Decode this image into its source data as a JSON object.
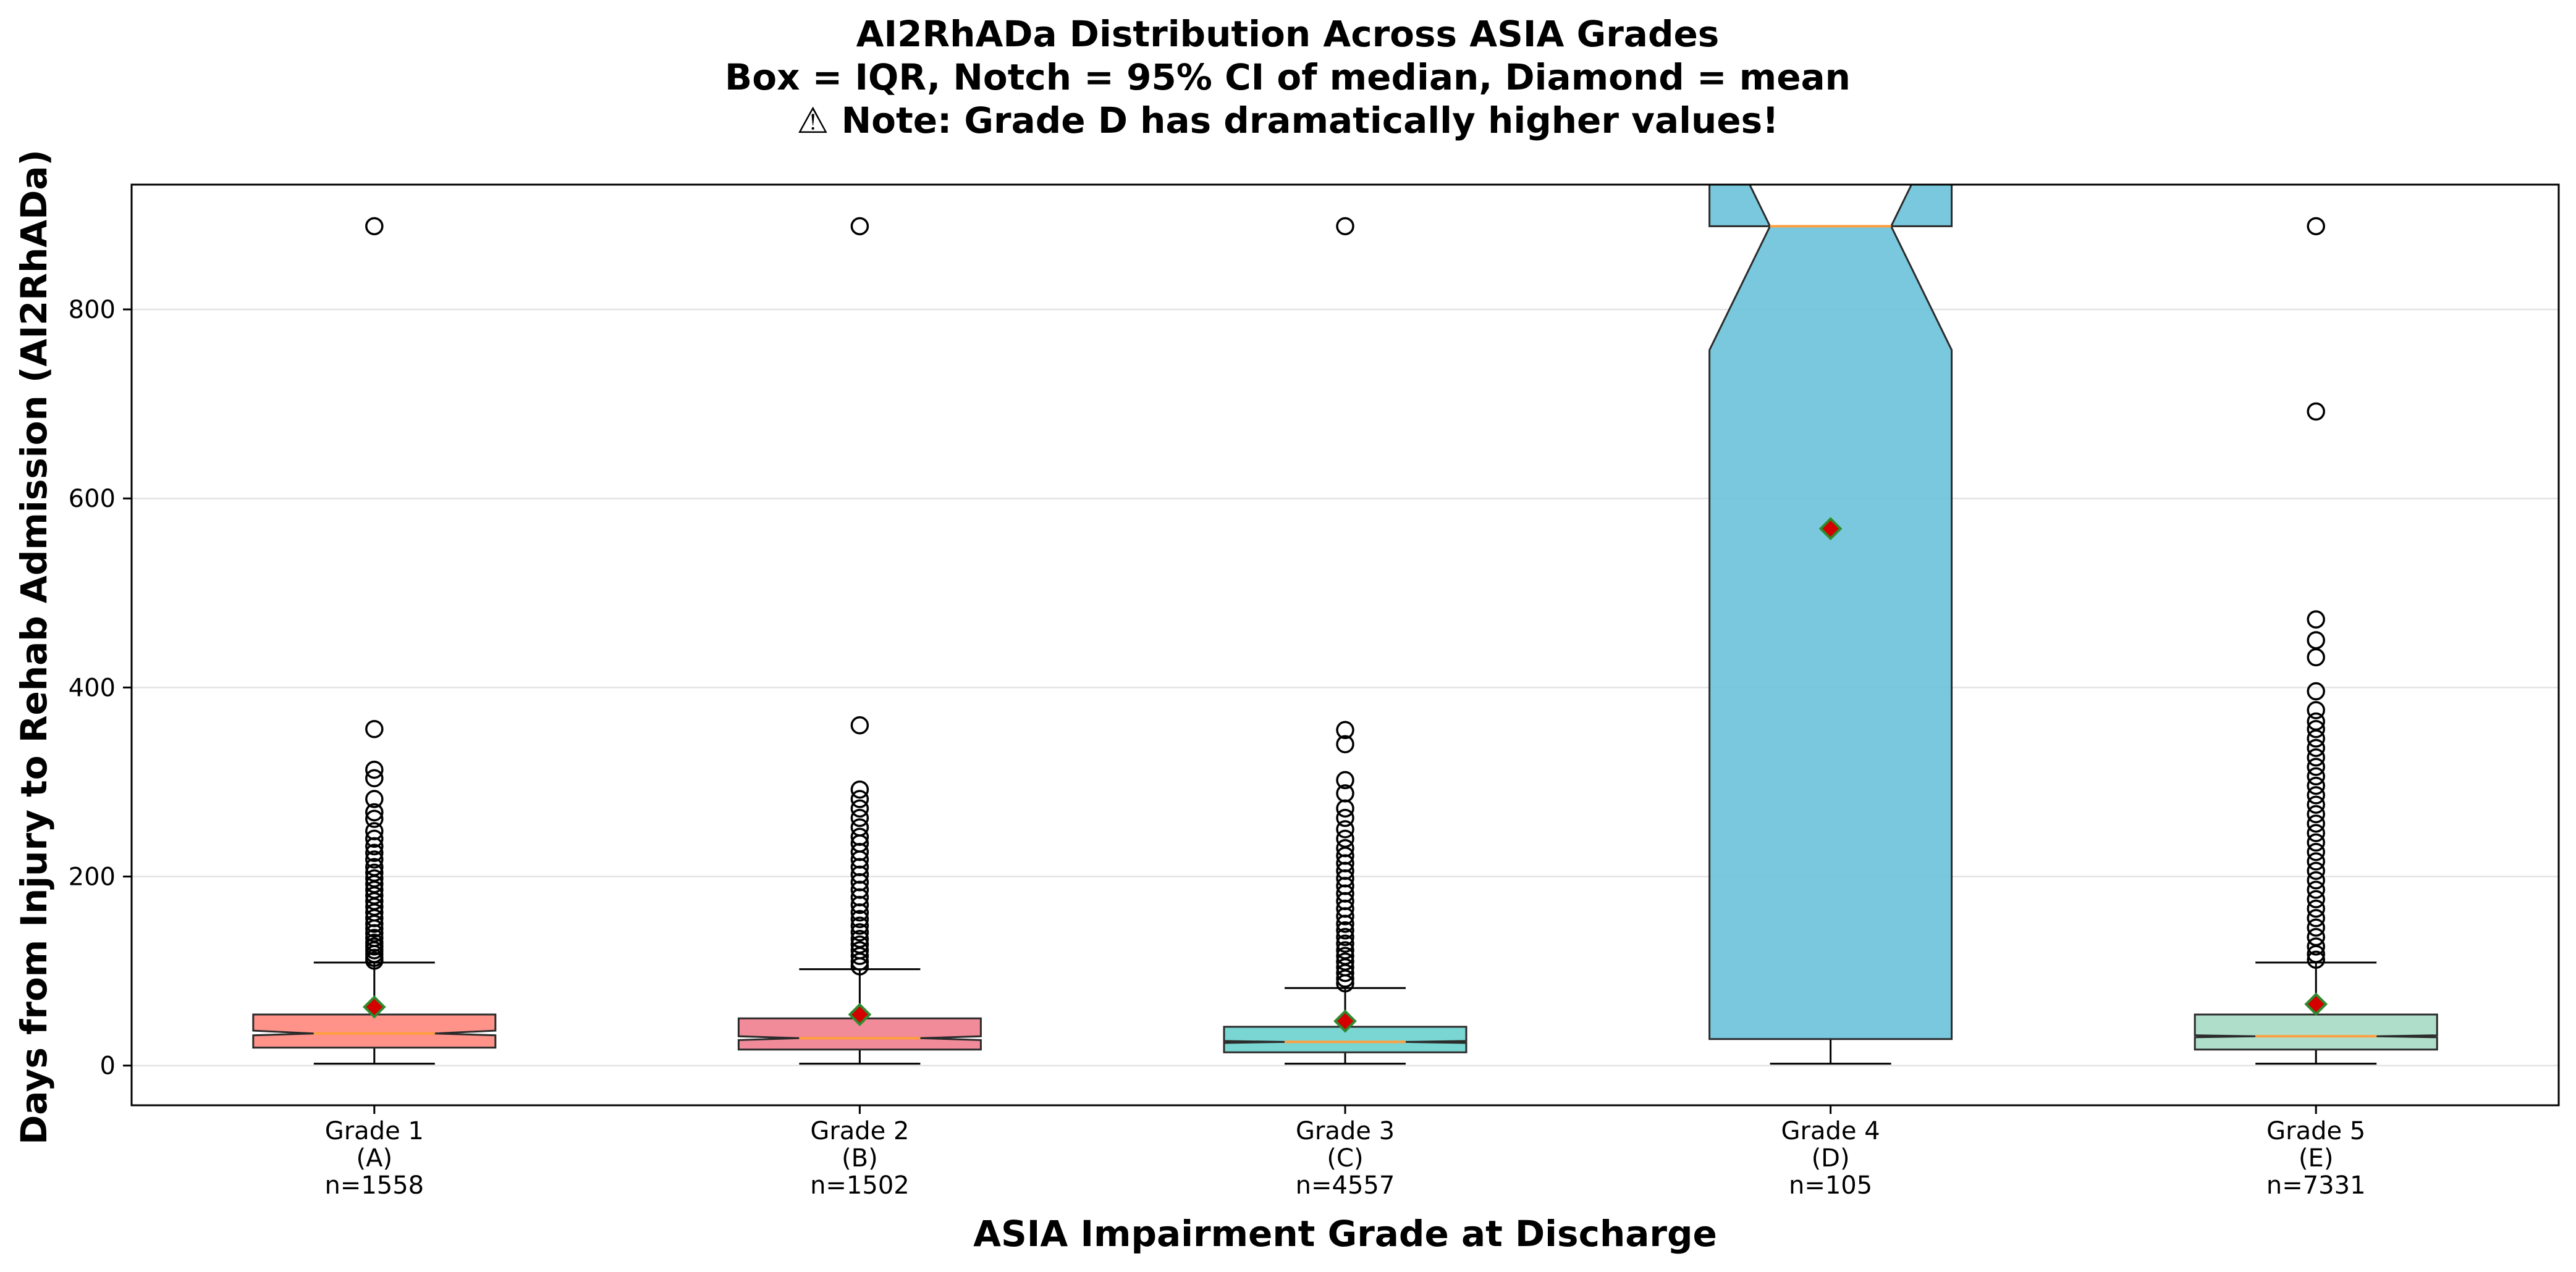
{
  "chart_data": {
    "type": "box",
    "title_lines": [
      "AI2RhADa Distribution Across ASIA Grades",
      "Box = IQR, Notch = 95% CI of median, Diamond = mean",
      "⚠ Note: Grade D has dramatically higher values!"
    ],
    "xlabel": "ASIA Impairment Grade at Discharge",
    "ylabel": "Days from Injury to Rehab Admission (AI2RhADa)",
    "ylim": [
      -42,
      932
    ],
    "yticks": [
      0,
      200,
      400,
      600,
      800
    ],
    "grid": "y",
    "mean_marker_color": "#d40000",
    "mean_marker_edge": "#2e8b2e",
    "median_color": "#ff9f40",
    "categories": [
      {
        "label_lines": [
          "Grade 1",
          "(A)",
          "n=1558"
        ],
        "color": "#ff8a80",
        "q1": 19,
        "median": 34,
        "q3": 54,
        "notch_low": 32,
        "notch_high": 37,
        "whisker_low": 2,
        "whisker_high": 109,
        "mean": 62,
        "outliers": [
          888,
          356,
          313,
          304,
          282,
          268,
          261,
          248,
          240,
          232,
          225,
          218,
          210,
          204,
          198,
          192,
          186,
          180,
          174,
          168,
          162,
          156,
          150,
          145,
          140,
          135,
          130,
          126,
          122,
          118,
          114,
          111
        ]
      },
      {
        "label_lines": [
          "Grade 2",
          "(B)",
          "n=1502"
        ],
        "color": "#f08090",
        "q1": 17,
        "median": 29,
        "q3": 50,
        "notch_low": 27,
        "notch_high": 31,
        "whisker_low": 2,
        "whisker_high": 102,
        "mean": 54,
        "outliers": [
          888,
          360,
          292,
          282,
          272,
          262,
          252,
          242,
          235,
          226,
          218,
          210,
          202,
          194,
          186,
          178,
          170,
          162,
          155,
          148,
          141,
          134,
          128,
          122,
          116,
          110,
          105
        ]
      },
      {
        "label_lines": [
          "Grade 3",
          "(C)",
          "n=4557"
        ],
        "color": "#6fd3cf",
        "q1": 14,
        "median": 25,
        "q3": 41,
        "notch_low": 24,
        "notch_high": 26,
        "whisker_low": 2,
        "whisker_high": 82,
        "mean": 47,
        "outliers": [
          888,
          355,
          340,
          302,
          288,
          272,
          262,
          250,
          240,
          230,
          222,
          214,
          206,
          198,
          190,
          182,
          174,
          166,
          158,
          150,
          143,
          136,
          129,
          122,
          116,
          110,
          104,
          98,
          92,
          87
        ]
      },
      {
        "label_lines": [
          "Grade 4",
          "(D)",
          "n=105"
        ],
        "color": "#6ec3da",
        "q1": 28,
        "median": 888,
        "q3": 888,
        "notch_low": 757,
        "notch_high": 1019,
        "whisker_low": 2,
        "whisker_high": 888,
        "mean": 568,
        "outliers": []
      },
      {
        "label_lines": [
          "Grade 5",
          "(E)",
          "n=7331"
        ],
        "color": "#a8dcc6",
        "q1": 17,
        "median": 31,
        "q3": 54,
        "notch_low": 30,
        "notch_high": 32,
        "whisker_low": 2,
        "whisker_high": 109,
        "mean": 65,
        "outliers": [
          888,
          692,
          472,
          450,
          432,
          396,
          376,
          364,
          356,
          346,
          336,
          326,
          316,
          306,
          296,
          286,
          276,
          266,
          256,
          246,
          236,
          226,
          216,
          206,
          196,
          186,
          176,
          166,
          156,
          146,
          136,
          126,
          118,
          112
        ]
      }
    ]
  }
}
